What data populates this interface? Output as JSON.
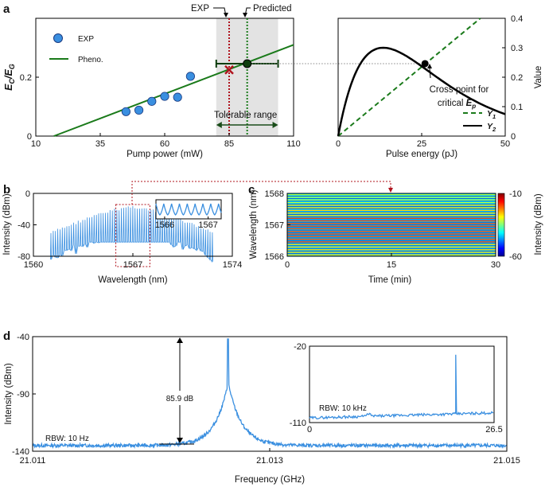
{
  "colors": {
    "green": "#1a7a1a",
    "blue": "#3a8fe0",
    "red": "#b0141e",
    "black": "#000000",
    "shade": "#e3e3e3"
  },
  "panel_labels": {
    "a": "a",
    "b": "b",
    "c": "c",
    "d": "d"
  },
  "chart_data": [
    {
      "id": "a_left",
      "type": "scatter",
      "xlabel": "Pump power (mW)",
      "ylabel_main": "E",
      "ylabel_sub1": "C",
      "ylabel_slash": "/E",
      "ylabel_sub2": "G",
      "xlim": [
        10,
        110
      ],
      "ylim": [
        0,
        0.4
      ],
      "xticks": [
        10,
        35,
        60,
        85,
        110
      ],
      "yticks": [
        0,
        0.2
      ],
      "exp_points": [
        [
          45,
          0.083
        ],
        [
          50,
          0.088
        ],
        [
          55,
          0.118
        ],
        [
          60,
          0.135
        ],
        [
          65,
          0.132
        ],
        [
          70,
          0.203
        ]
      ],
      "pheno_line": [
        [
          17,
          0
        ],
        [
          110,
          0.31
        ]
      ],
      "exp_value": 85,
      "exp_marker_y": 0.225,
      "predicted_value": 92,
      "predicted_y": 0.246,
      "errorbar": [
        80,
        104
      ],
      "tolerable_range": [
        80,
        104
      ],
      "legend": {
        "exp": "EXP",
        "pheno": "Pheno."
      },
      "annotations": {
        "exp": "EXP",
        "predicted": "Predicted",
        "tolerable": "Tolerable range"
      }
    },
    {
      "id": "a_right",
      "type": "line",
      "xlabel": "Pulse energy (pJ)",
      "ylabel_right": "Value",
      "xlim": [
        0,
        50
      ],
      "ylim": [
        0,
        0.4
      ],
      "xticks": [
        0,
        25,
        50
      ],
      "yticks": [
        0,
        0.1,
        0.2,
        0.3,
        0.4
      ],
      "y1_line": [
        [
          0,
          0
        ],
        [
          50,
          0.47
        ]
      ],
      "y2_curve": {
        "a": 0.3,
        "xp": 13.5
      },
      "cross_point": [
        26,
        0.246
      ],
      "annotation_line1": "Cross point for",
      "annotation_line2": "critical ",
      "annotation_sym": "E",
      "annotation_sub": "p",
      "legend": [
        {
          "sym": "Y",
          "sub": "1",
          "style": "dashed"
        },
        {
          "sym": "Y",
          "sub": "2",
          "style": "solid"
        }
      ]
    },
    {
      "id": "b",
      "type": "line",
      "xlabel": "Wavelength (nm)",
      "ylabel": "Intensity (dBm)",
      "xlim": [
        1560,
        1574
      ],
      "ylim": [
        -80,
        0
      ],
      "xticks": [
        1560,
        1567,
        1574
      ],
      "yticks": [
        -80,
        -40,
        0
      ],
      "center": 1566.9,
      "comb_spacing": 0.16,
      "inset": {
        "xticks": [
          1566,
          1567
        ],
        "xlim": [
          1565.8,
          1567.3
        ]
      }
    },
    {
      "id": "c",
      "type": "heatmap",
      "xlabel": "Time (min)",
      "ylabel": "Wavelength (nm)",
      "xlim": [
        0,
        30
      ],
      "ylim": [
        1566,
        1568
      ],
      "xticks": [
        0,
        15,
        30
      ],
      "yticks": [
        1566,
        1567,
        1568
      ],
      "colorbar": {
        "label": "Intensity (dBm)",
        "min": -60,
        "max": -10,
        "ticks": [
          -10,
          -60
        ]
      },
      "lines": 24
    },
    {
      "id": "d",
      "type": "line",
      "xlabel": "Frequency (GHz)",
      "ylabel": "Intensity (dBm)",
      "xlim": [
        21.011,
        21.015
      ],
      "ylim": [
        -140,
        -40
      ],
      "xticks": [
        "21.011",
        "21.013",
        "21.015"
      ],
      "yticks": [
        -140,
        -90,
        -40
      ],
      "peak_freq": 21.01265,
      "peak_level": -42,
      "floor": -135,
      "snr_label": "85.9 dB",
      "rbw_label": "RBW: 10 Hz",
      "inset": {
        "xlim": [
          0,
          26.5
        ],
        "ylim": [
          -110,
          -20
        ],
        "xticks": [
          "0",
          "26.5"
        ],
        "yticks": [
          -110,
          -20
        ],
        "rbw_label": "RBW: 10 kHz",
        "peak_x": 21.0
      }
    }
  ]
}
